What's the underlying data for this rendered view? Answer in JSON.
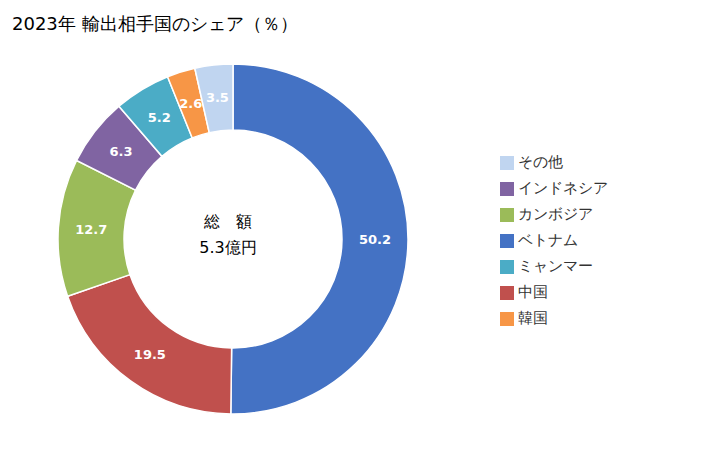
{
  "chart_data": {
    "type": "donut",
    "title": "2023年 輸出相手国のシェア（％）",
    "annotations": [
      "総　額",
      "5.3億円"
    ],
    "categories": [
      "ベトナム",
      "中国",
      "カンボジア",
      "インドネシア",
      "ミャンマー",
      "韓国",
      "その他"
    ],
    "values": [
      50.2,
      19.5,
      12.7,
      6.3,
      5.2,
      2.6,
      3.5
    ],
    "colors": [
      "#4472C4",
      "#C0504D",
      "#9BBB59",
      "#8064A2",
      "#4BACC6",
      "#F79646",
      "#C0D5F0"
    ],
    "data_labels": true,
    "legend": "right"
  }
}
